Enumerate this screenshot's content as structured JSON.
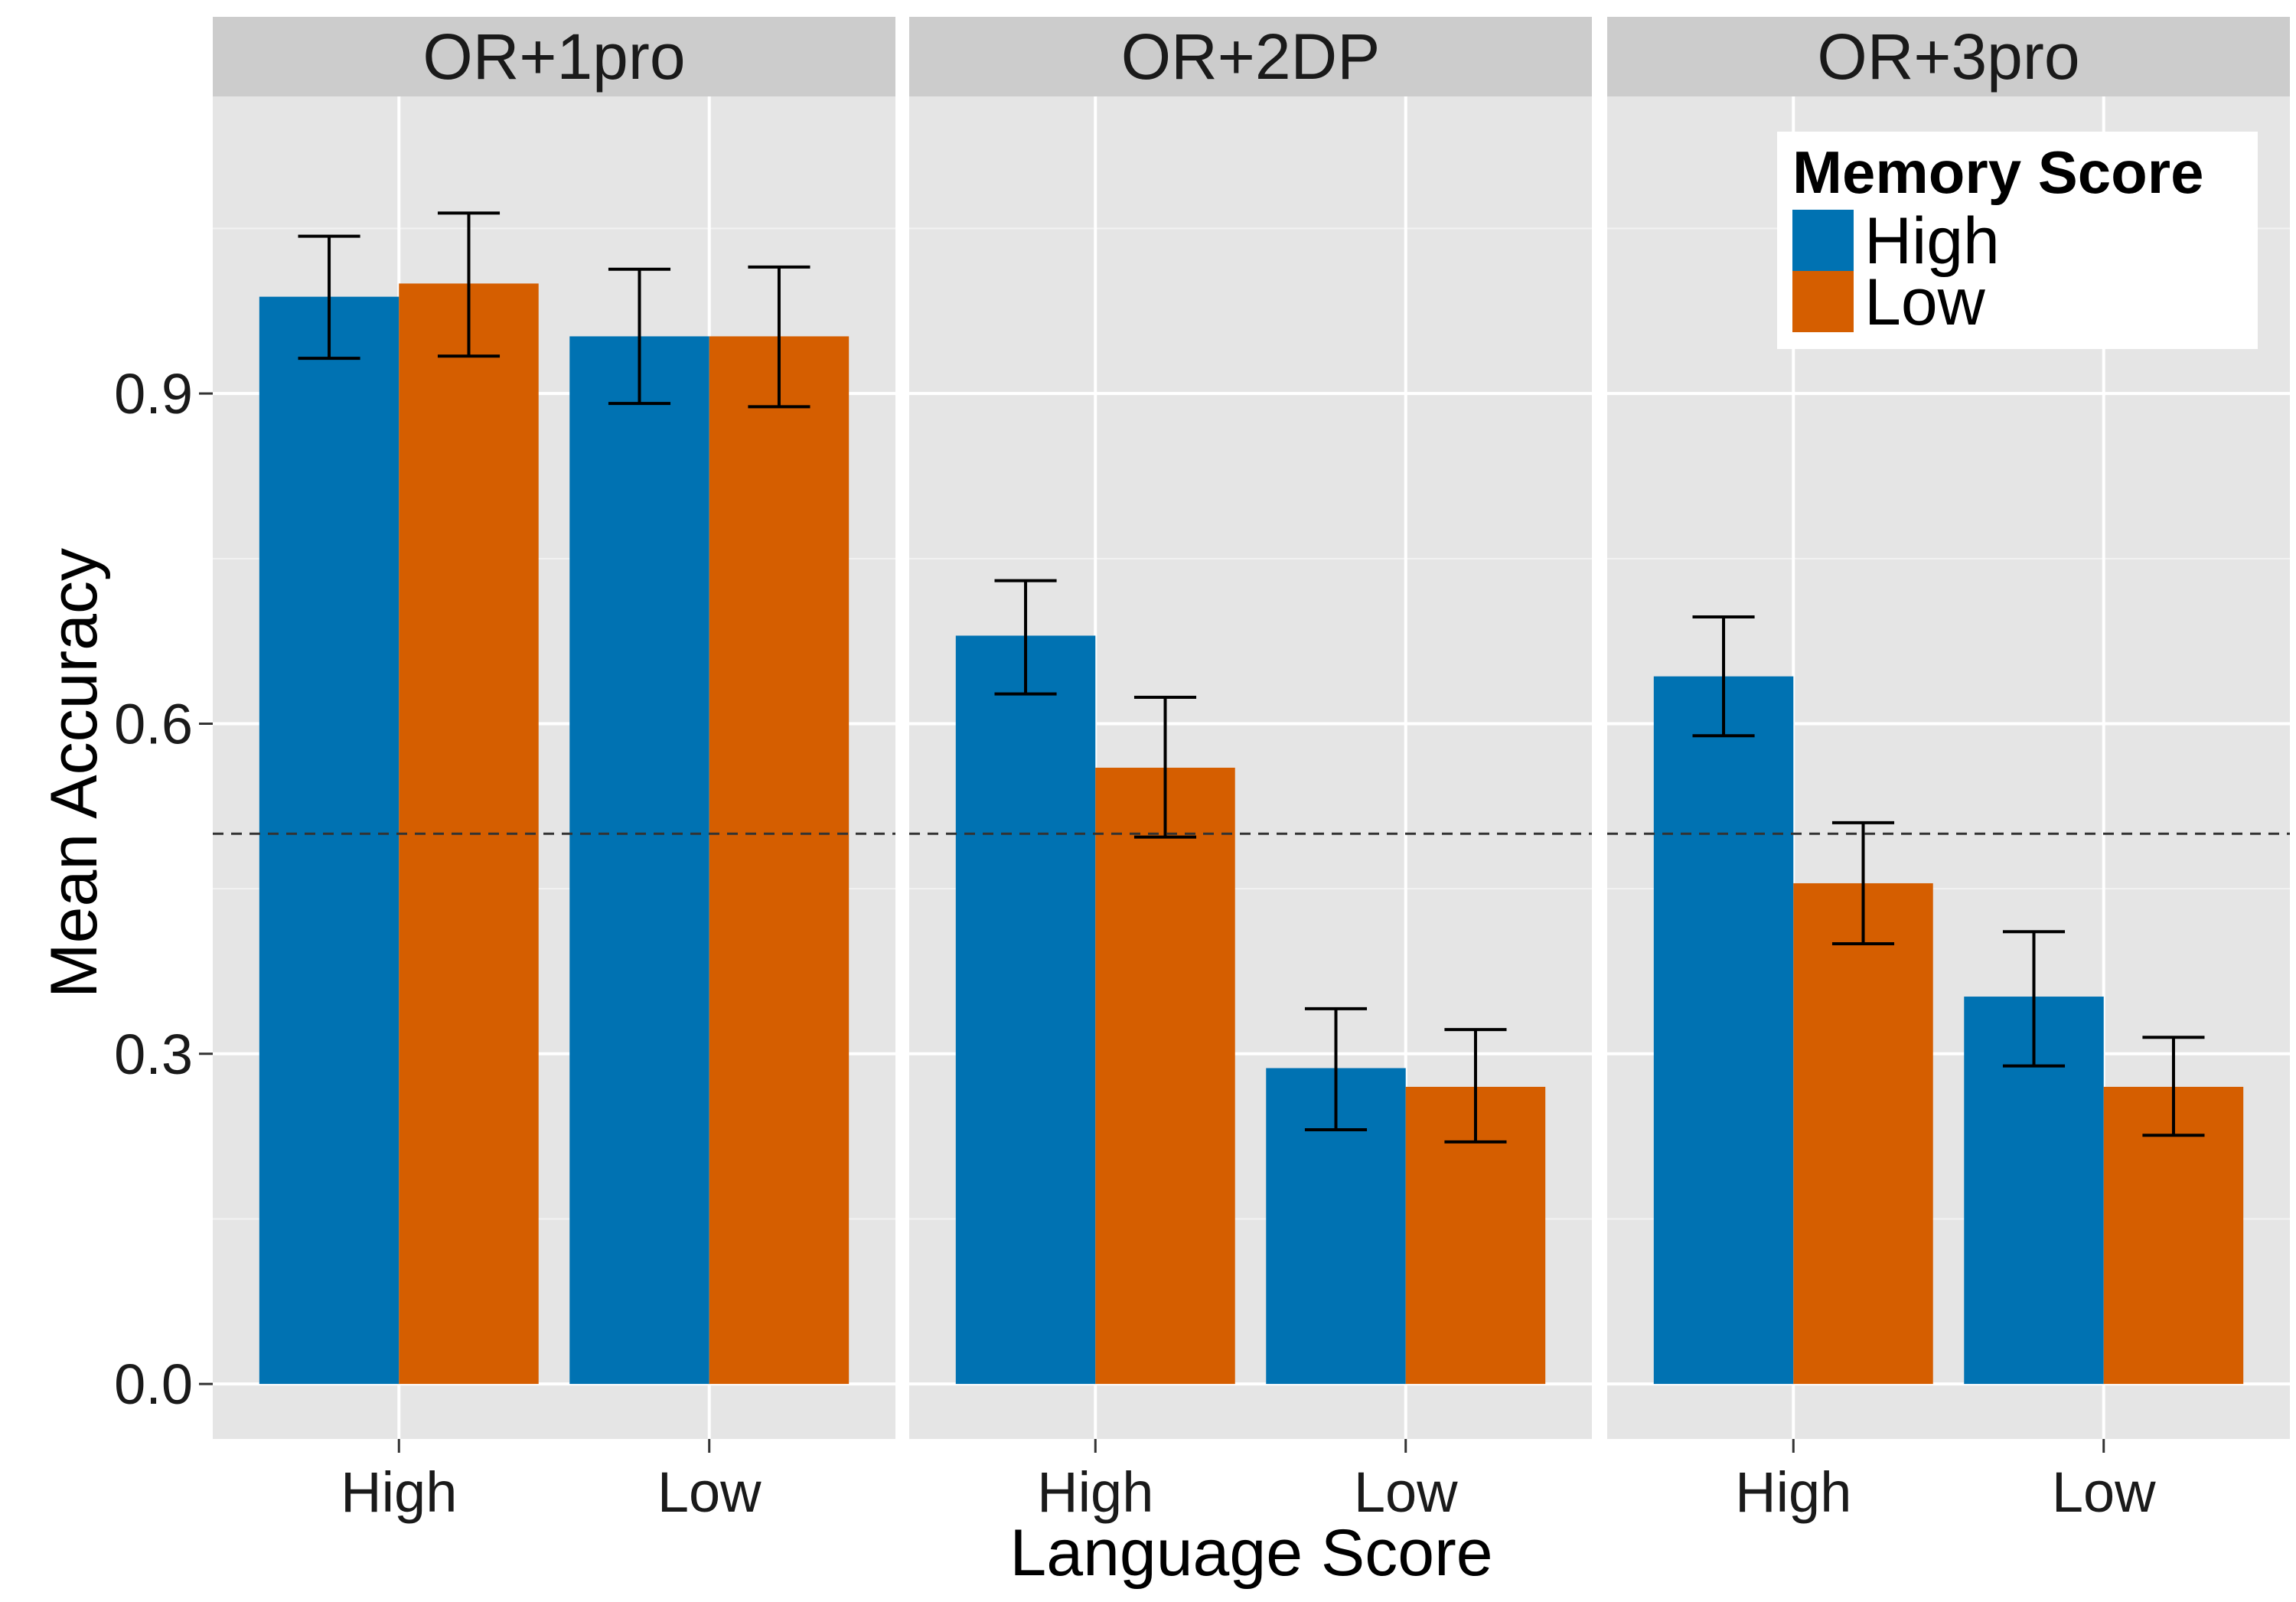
{
  "chart_data": {
    "type": "bar",
    "xlabel": "Language Score",
    "ylabel": "Mean Accuracy",
    "ylim": [
      -0.05,
      1.17
    ],
    "yticks": [
      0.0,
      0.3,
      0.6,
      0.9
    ],
    "ytick_labels": [
      "0.0",
      "0.3",
      "0.6",
      "0.9"
    ],
    "reference_line": 0.5,
    "categories": [
      "High",
      "Low"
    ],
    "legend": {
      "title": "Memory Score",
      "placement": "top-right",
      "entries": [
        {
          "name": "High",
          "color": "#0072B2"
        },
        {
          "name": "Low",
          "color": "#D55E00"
        }
      ]
    },
    "panels": [
      {
        "title": "OR+1pro",
        "series": [
          {
            "name": "High",
            "values": [
              0.988,
              0.952
            ],
            "err_low": [
              0.932,
              0.891
            ],
            "err_high": [
              1.043,
              1.013
            ]
          },
          {
            "name": "Low",
            "values": [
              1.0,
              0.952
            ],
            "err_low": [
              0.934,
              0.888
            ],
            "err_high": [
              1.064,
              1.015
            ]
          }
        ]
      },
      {
        "title": "OR+2DP",
        "series": [
          {
            "name": "High",
            "values": [
              0.68,
              0.287
            ],
            "err_low": [
              0.627,
              0.231
            ],
            "err_high": [
              0.73,
              0.341
            ]
          },
          {
            "name": "Low",
            "values": [
              0.56,
              0.27
            ],
            "err_low": [
              0.497,
              0.22
            ],
            "err_high": [
              0.624,
              0.322
            ]
          }
        ]
      },
      {
        "title": "OR+3pro",
        "series": [
          {
            "name": "High",
            "values": [
              0.643,
              0.352
            ],
            "err_low": [
              0.589,
              0.289
            ],
            "err_high": [
              0.697,
              0.411
            ]
          },
          {
            "name": "Low",
            "values": [
              0.455,
              0.27
            ],
            "err_low": [
              0.4,
              0.226
            ],
            "err_high": [
              0.51,
              0.315
            ]
          }
        ]
      }
    ]
  }
}
